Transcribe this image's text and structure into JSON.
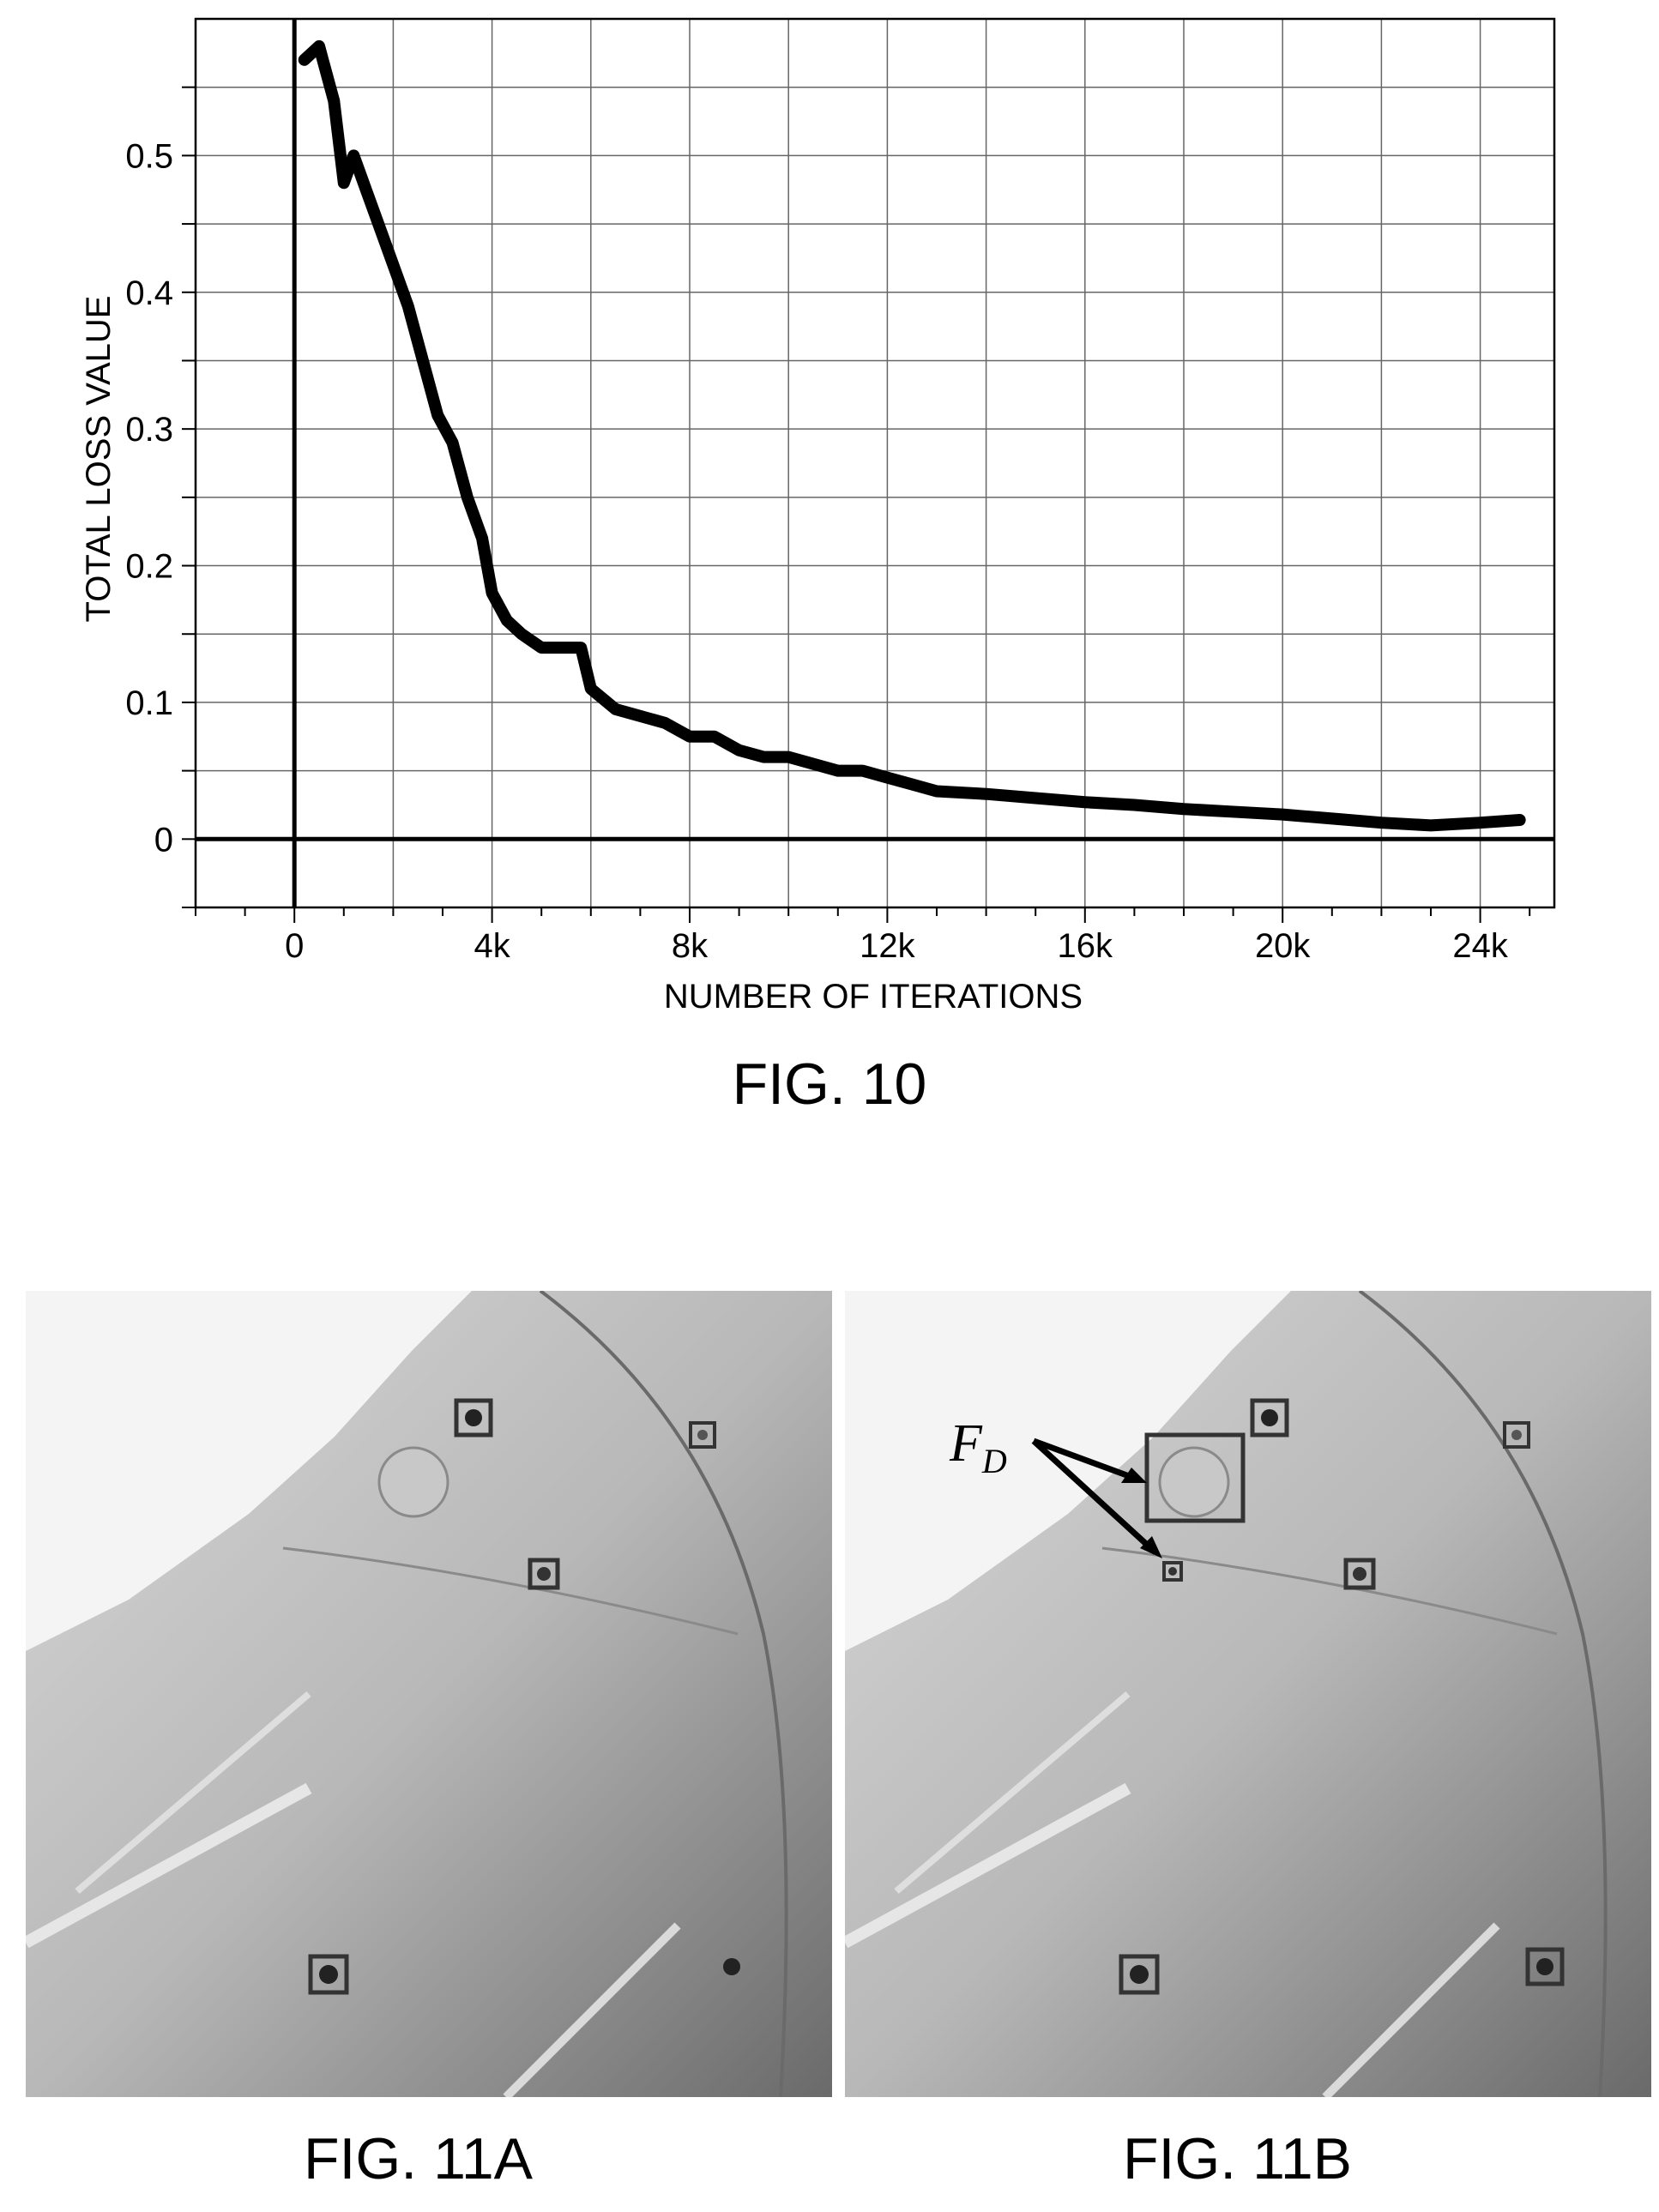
{
  "figures": {
    "fig10_caption": "FIG. 10",
    "fig11a_caption": "FIG. 11A",
    "fig11b_caption": "FIG. 11B",
    "fig11b_annotation": "F",
    "fig11b_annotation_subscript": "D"
  },
  "chart_data": {
    "type": "line",
    "title": "",
    "xlabel": "NUMBER OF ITERATIONS",
    "ylabel": "TOTAL LOSS VALUE",
    "xlim": [
      -2000,
      25500
    ],
    "ylim": [
      -0.05,
      0.6
    ],
    "x_ticks": [
      0,
      4000,
      8000,
      12000,
      16000,
      20000,
      24000
    ],
    "x_tick_labels": [
      "0",
      "4k",
      "8k",
      "12k",
      "16k",
      "20k",
      "24k"
    ],
    "y_ticks": [
      0,
      0.1,
      0.2,
      0.3,
      0.4,
      0.5
    ],
    "y_tick_labels": [
      "0",
      "0.1",
      "0.2",
      "0.3",
      "0.4",
      "0.5"
    ],
    "grid": true,
    "series": [
      {
        "x": [
          200,
          500,
          800,
          1000,
          1200,
          1500,
          1800,
          2000,
          2300,
          2600,
          2900,
          3200,
          3500,
          3800,
          4000,
          4300,
          4600,
          5000,
          5500,
          5800,
          6000,
          6500,
          7000,
          7500,
          8000,
          8500,
          9000,
          9500,
          10000,
          10500,
          11000,
          11500,
          12000,
          12500,
          13000,
          14000,
          15000,
          16000,
          17000,
          18000,
          19000,
          20000,
          21000,
          22000,
          23000,
          24000,
          24800
        ],
        "y": [
          0.57,
          0.58,
          0.54,
          0.48,
          0.5,
          0.47,
          0.44,
          0.42,
          0.39,
          0.35,
          0.31,
          0.29,
          0.25,
          0.22,
          0.18,
          0.16,
          0.15,
          0.14,
          0.14,
          0.14,
          0.11,
          0.095,
          0.09,
          0.085,
          0.075,
          0.075,
          0.065,
          0.06,
          0.06,
          0.055,
          0.05,
          0.05,
          0.045,
          0.04,
          0.035,
          0.033,
          0.03,
          0.027,
          0.025,
          0.022,
          0.02,
          0.018,
          0.015,
          0.012,
          0.01,
          0.012,
          0.014
        ]
      }
    ]
  }
}
